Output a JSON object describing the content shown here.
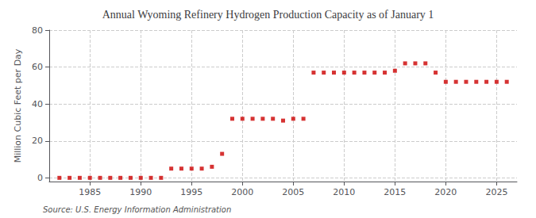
{
  "chart_data": {
    "type": "scatter",
    "title": "Annual Wyoming Refinery Hydrogen Production Capacity as of January 1",
    "ylabel": "Million Cubic Feet per Day",
    "annotation": "Source: U.S. Energy Information Administration",
    "x": [
      1982,
      1983,
      1984,
      1985,
      1986,
      1987,
      1988,
      1989,
      1990,
      1991,
      1992,
      1993,
      1994,
      1995,
      1996,
      1997,
      1998,
      1999,
      2000,
      2001,
      2002,
      2003,
      2004,
      2005,
      2006,
      2007,
      2008,
      2009,
      2010,
      2011,
      2012,
      2013,
      2014,
      2015,
      2016,
      2017,
      2018,
      2019,
      2020,
      2021,
      2022,
      2023,
      2024,
      2025,
      2026
    ],
    "values": [
      0,
      0,
      0,
      0,
      0,
      0,
      0,
      0,
      0,
      0,
      0,
      5,
      5,
      5,
      5,
      6,
      13,
      32,
      32,
      32,
      32,
      32,
      31,
      32,
      32,
      57,
      57,
      57,
      57,
      57,
      57,
      57,
      57,
      58,
      62,
      62,
      62,
      57,
      52,
      52,
      52,
      52,
      52,
      52,
      52
    ],
    "color": "#cc0000",
    "marker": "square",
    "xlim": [
      1981,
      2027
    ],
    "xticks": [
      1985,
      1990,
      1995,
      2000,
      2005,
      2010,
      2015,
      2020,
      2025
    ],
    "ylim": [
      -2,
      80
    ],
    "yticks": [
      0,
      20,
      40,
      60,
      80
    ],
    "grid": true
  }
}
